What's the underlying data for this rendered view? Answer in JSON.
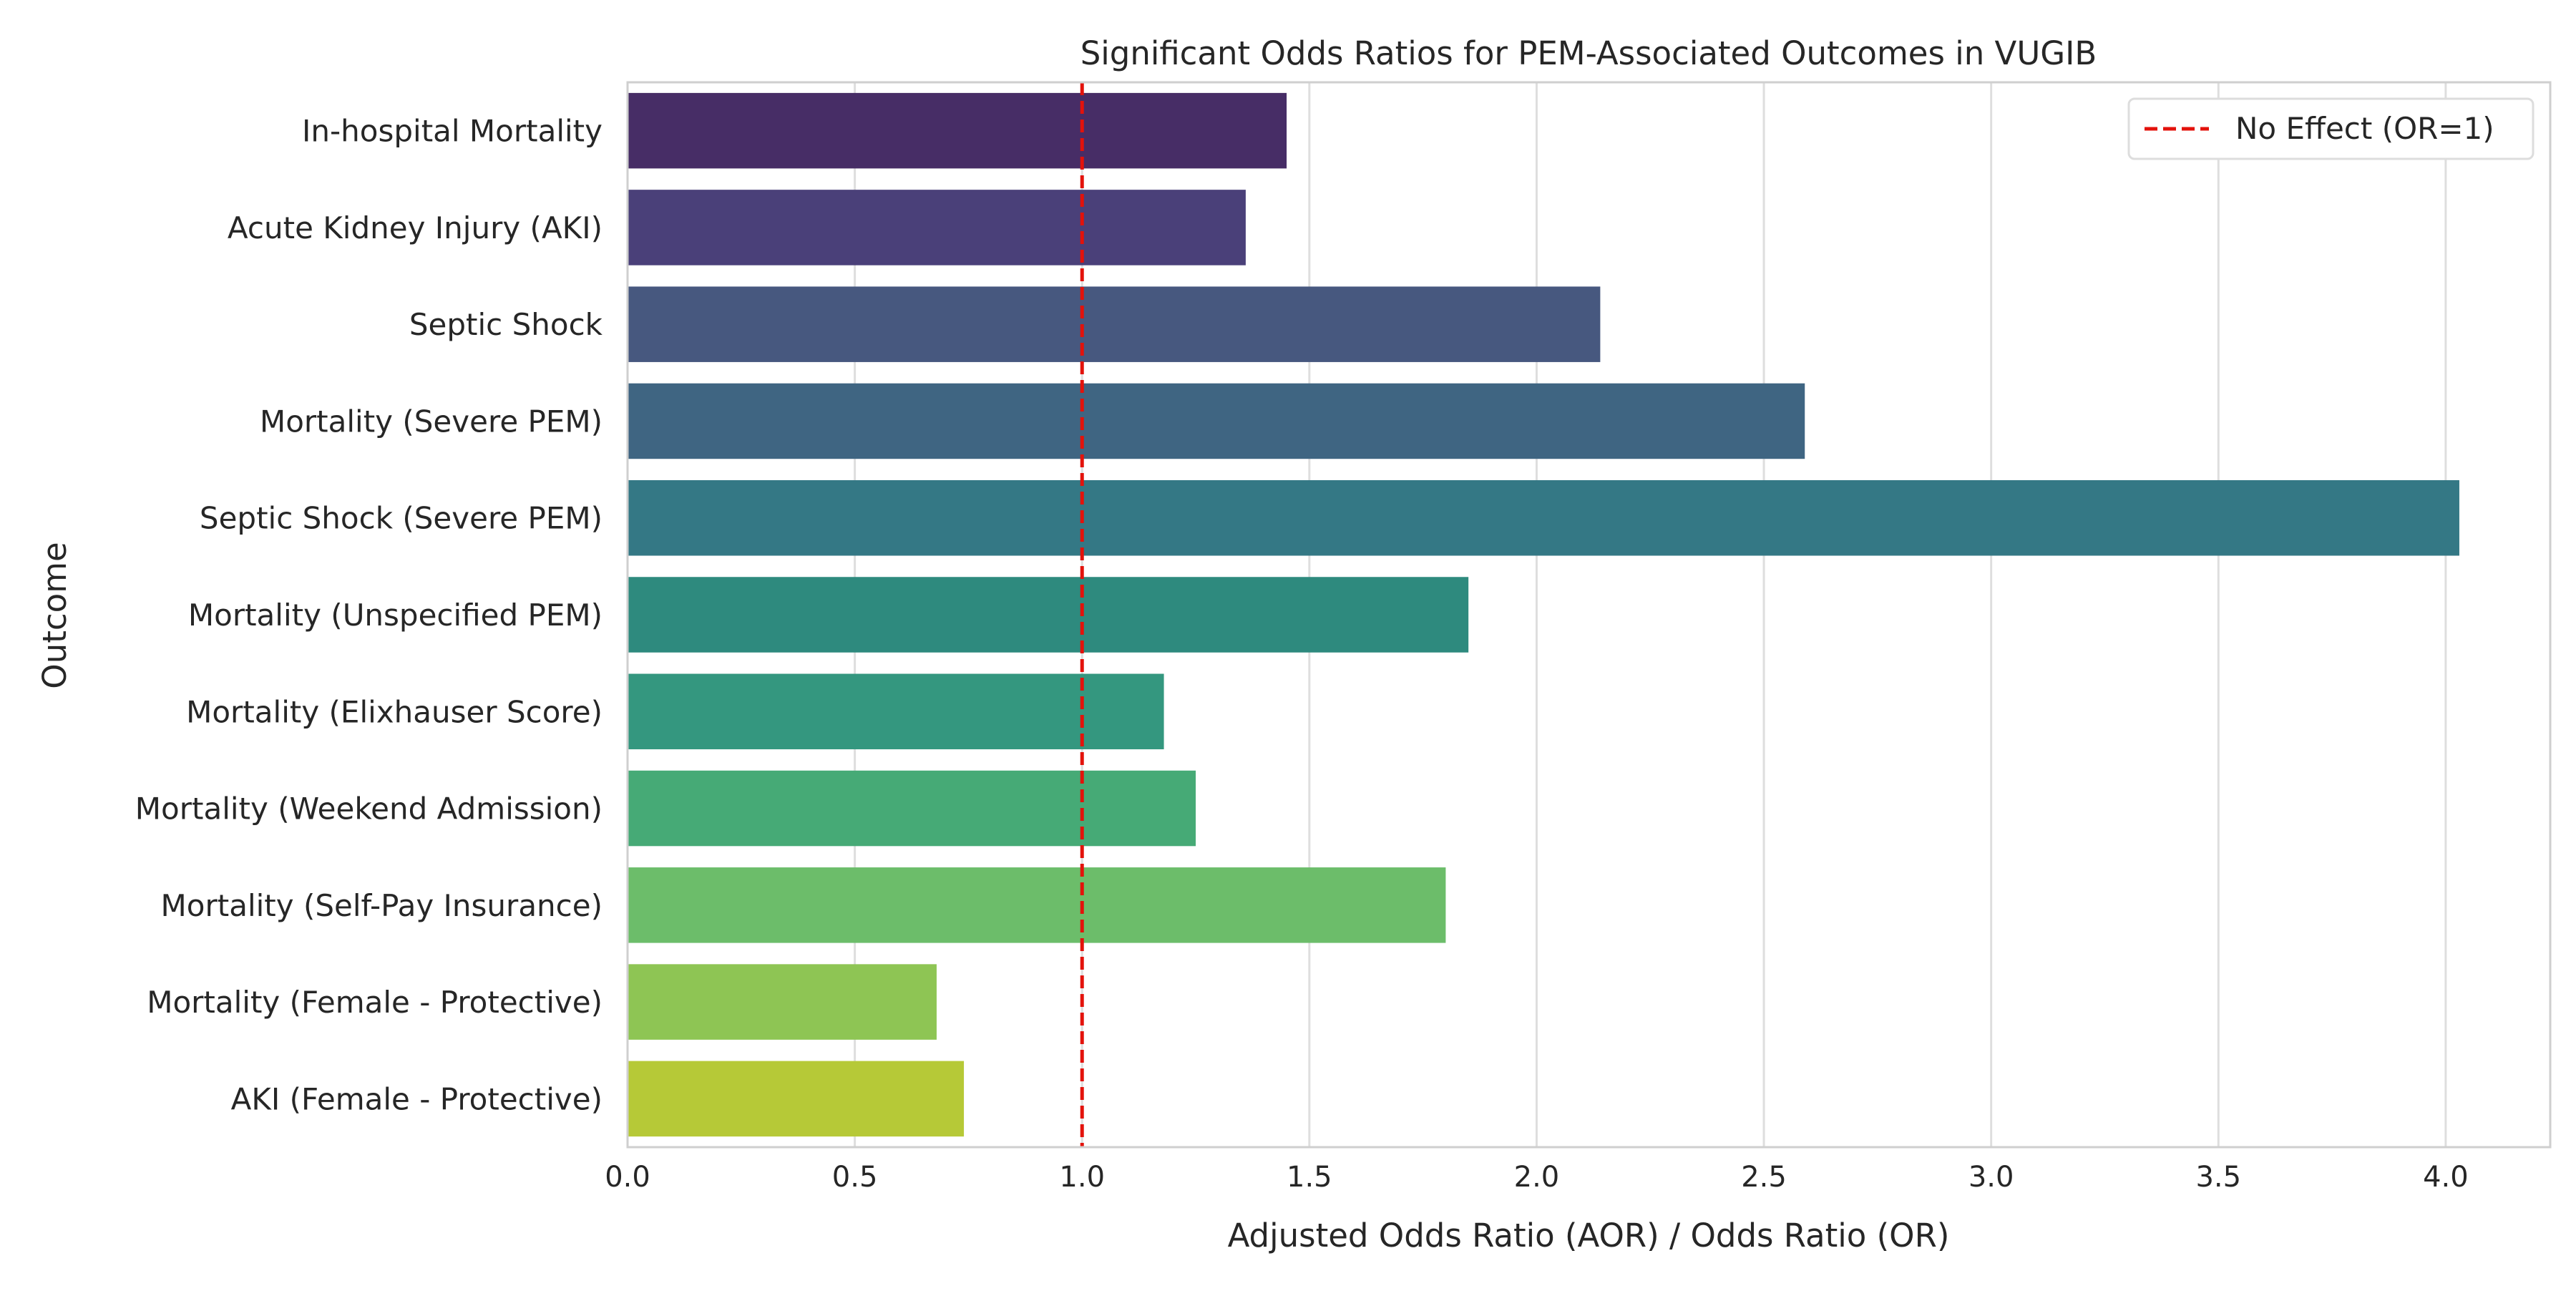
{
  "chart_data": {
    "type": "bar",
    "orientation": "horizontal",
    "title": "Significant Odds Ratios for PEM-Associated Outcomes in VUGIB",
    "xlabel": "Adjusted Odds Ratio (AOR) / Odds Ratio (OR)",
    "ylabel": "Outcome",
    "xlim": [
      0,
      4.23
    ],
    "xticks": [
      "0.0",
      "0.5",
      "1.0",
      "1.5",
      "2.0",
      "2.5",
      "3.0",
      "3.5",
      "4.0"
    ],
    "grid": "vertical",
    "categories": [
      "In-hospital Mortality",
      "Acute Kidney Injury (AKI)",
      "Septic Shock",
      "Mortality (Severe PEM)",
      "Septic Shock (Severe PEM)",
      "Mortality (Unspecified PEM)",
      "Mortality (Elixhauser Score)",
      "Mortality (Weekend Admission)",
      "Mortality (Self-Pay Insurance)",
      "Mortality (Female - Protective)",
      "AKI (Female - Protective)"
    ],
    "values": [
      1.45,
      1.36,
      2.14,
      2.59,
      4.03,
      1.85,
      1.18,
      1.25,
      1.8,
      0.68,
      0.74
    ],
    "colors": [
      "#472d66",
      "#4a4079",
      "#47587f",
      "#3f6582",
      "#347885",
      "#2e8a7e",
      "#34977f",
      "#46aa76",
      "#6cbd6a",
      "#8ec554",
      "#b6c937"
    ],
    "reference_line": {
      "x": 1.0,
      "label": "No Effect (OR=1)",
      "color": "#e3120b",
      "style": "dashed"
    },
    "legend": {
      "placement": "top-right",
      "entries": [
        "No Effect (OR=1)"
      ]
    }
  }
}
